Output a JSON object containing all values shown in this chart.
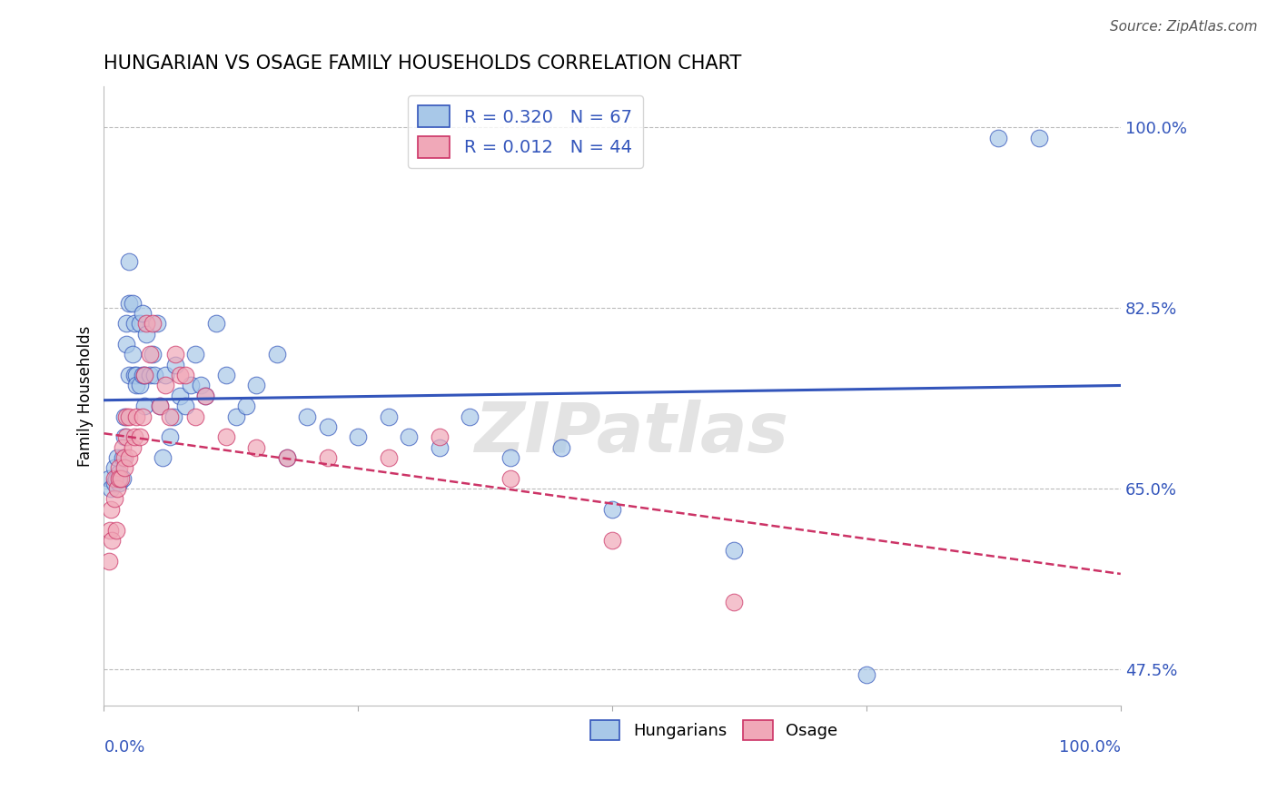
{
  "title": "HUNGARIAN VS OSAGE FAMILY HOUSEHOLDS CORRELATION CHART",
  "source": "Source: ZipAtlas.com",
  "ylabel": "Family Households",
  "blue_color": "#A8C8E8",
  "pink_color": "#F0A8B8",
  "trend_blue": "#3355BB",
  "trend_pink": "#CC3366",
  "watermark": "ZIPatlas",
  "hungarian_R": "0.320",
  "hungarian_N": "67",
  "osage_R": "0.012",
  "osage_N": "44",
  "xlim": [
    0.0,
    1.0
  ],
  "ylim": [
    0.44,
    1.04
  ],
  "ytick_positions": [
    0.475,
    0.65,
    0.825,
    1.0
  ],
  "ytick_labels": [
    "47.5%",
    "65.0%",
    "82.5%",
    "100.0%"
  ],
  "hungarian_x": [
    0.005,
    0.007,
    0.01,
    0.01,
    0.012,
    0.013,
    0.015,
    0.015,
    0.018,
    0.018,
    0.02,
    0.02,
    0.022,
    0.022,
    0.025,
    0.025,
    0.025,
    0.028,
    0.028,
    0.03,
    0.03,
    0.032,
    0.032,
    0.035,
    0.035,
    0.038,
    0.038,
    0.04,
    0.04,
    0.042,
    0.045,
    0.048,
    0.05,
    0.052,
    0.055,
    0.058,
    0.06,
    0.065,
    0.068,
    0.07,
    0.075,
    0.08,
    0.085,
    0.09,
    0.095,
    0.1,
    0.11,
    0.12,
    0.13,
    0.14,
    0.15,
    0.17,
    0.18,
    0.2,
    0.22,
    0.25,
    0.28,
    0.3,
    0.33,
    0.36,
    0.4,
    0.45,
    0.5,
    0.62,
    0.75,
    0.88,
    0.92
  ],
  "hungarian_y": [
    0.66,
    0.65,
    0.67,
    0.655,
    0.66,
    0.68,
    0.665,
    0.655,
    0.68,
    0.66,
    0.7,
    0.72,
    0.81,
    0.79,
    0.76,
    0.83,
    0.87,
    0.78,
    0.83,
    0.76,
    0.81,
    0.76,
    0.75,
    0.75,
    0.81,
    0.76,
    0.82,
    0.73,
    0.76,
    0.8,
    0.76,
    0.78,
    0.76,
    0.81,
    0.73,
    0.68,
    0.76,
    0.7,
    0.72,
    0.77,
    0.74,
    0.73,
    0.75,
    0.78,
    0.75,
    0.74,
    0.81,
    0.76,
    0.72,
    0.73,
    0.75,
    0.78,
    0.68,
    0.72,
    0.71,
    0.7,
    0.72,
    0.7,
    0.69,
    0.72,
    0.68,
    0.69,
    0.63,
    0.59,
    0.47,
    0.99,
    0.99
  ],
  "osage_x": [
    0.005,
    0.006,
    0.007,
    0.008,
    0.01,
    0.01,
    0.012,
    0.013,
    0.015,
    0.015,
    0.017,
    0.018,
    0.02,
    0.02,
    0.022,
    0.022,
    0.025,
    0.025,
    0.028,
    0.03,
    0.032,
    0.035,
    0.038,
    0.04,
    0.042,
    0.045,
    0.048,
    0.055,
    0.06,
    0.065,
    0.07,
    0.075,
    0.08,
    0.09,
    0.1,
    0.12,
    0.15,
    0.18,
    0.22,
    0.28,
    0.33,
    0.4,
    0.5,
    0.62
  ],
  "osage_y": [
    0.58,
    0.61,
    0.63,
    0.6,
    0.66,
    0.64,
    0.61,
    0.65,
    0.67,
    0.66,
    0.66,
    0.69,
    0.68,
    0.67,
    0.7,
    0.72,
    0.68,
    0.72,
    0.69,
    0.7,
    0.72,
    0.7,
    0.72,
    0.76,
    0.81,
    0.78,
    0.81,
    0.73,
    0.75,
    0.72,
    0.78,
    0.76,
    0.76,
    0.72,
    0.74,
    0.7,
    0.69,
    0.68,
    0.68,
    0.68,
    0.7,
    0.66,
    0.6,
    0.54
  ]
}
